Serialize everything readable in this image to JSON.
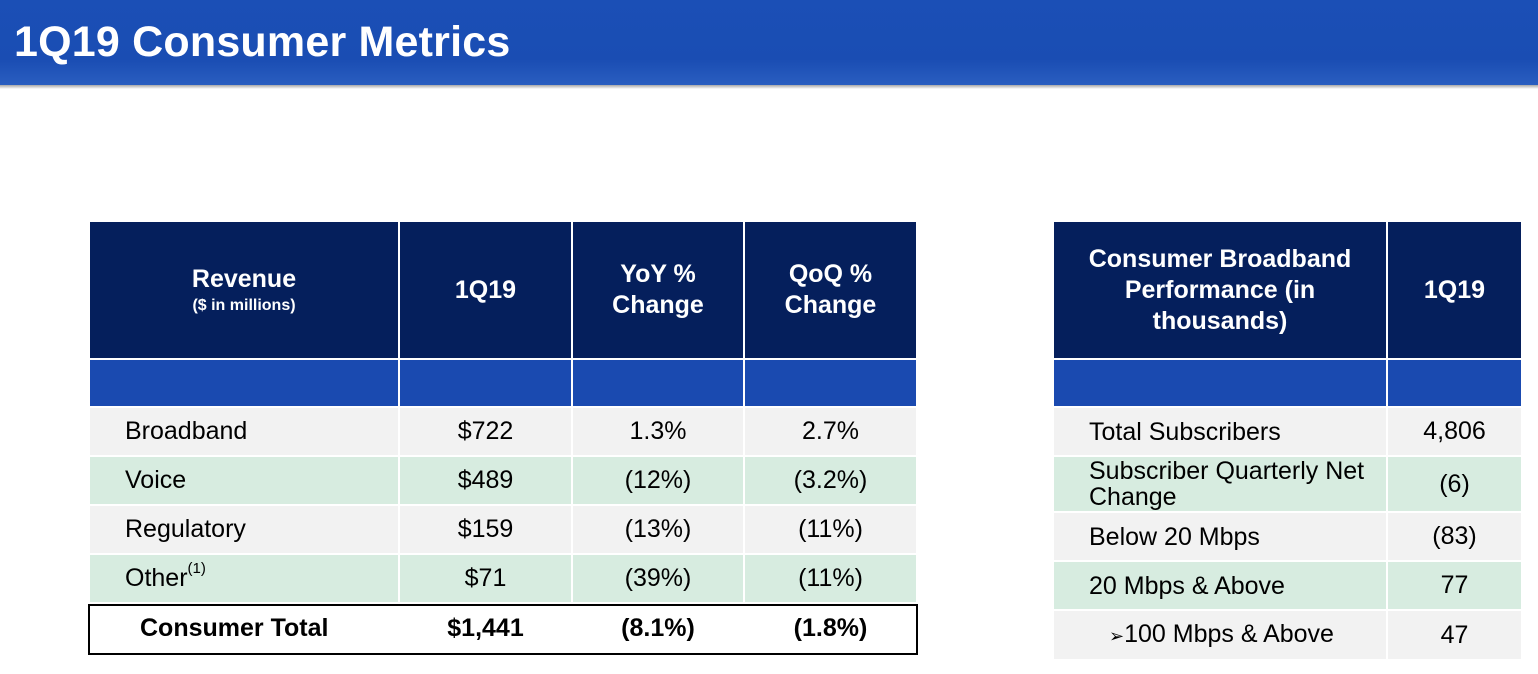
{
  "page": {
    "title": "1Q19 Consumer Metrics"
  },
  "revenue_table": {
    "headers": {
      "revenue": "Revenue",
      "revenue_sub": "($ in millions)",
      "period": "1Q19",
      "yoy": "YoY % Change",
      "qoq": "QoQ % Change"
    },
    "rows": [
      {
        "label": "Broadband",
        "sup": "",
        "value": "$722",
        "yoy": "1.3%",
        "qoq": "2.7%"
      },
      {
        "label": "Voice",
        "sup": "",
        "value": "$489",
        "yoy": "(12%)",
        "qoq": "(3.2%)"
      },
      {
        "label": "Regulatory",
        "sup": "",
        "value": "$159",
        "yoy": "(13%)",
        "qoq": "(11%)"
      },
      {
        "label": "Other",
        "sup": "(1)",
        "value": "$71",
        "yoy": "(39%)",
        "qoq": "(11%)"
      }
    ],
    "total": {
      "label": "Consumer Total",
      "value": "$1,441",
      "yoy": "(8.1%)",
      "qoq": "(1.8%)"
    }
  },
  "broadband_table": {
    "headers": {
      "metric": "Consumer Broadband Performance (in thousands)",
      "period": "1Q19"
    },
    "rows": [
      {
        "label": "Total Subscribers",
        "value": "4,806"
      },
      {
        "label": "Subscriber Quarterly Net Change",
        "value": "(6)"
      },
      {
        "label": "Below 20 Mbps",
        "value": "(83)"
      },
      {
        "label": "20 Mbps & Above",
        "value": "77"
      },
      {
        "label": "100 Mbps & Above",
        "bullet": "➢",
        "value": "47"
      }
    ]
  }
}
